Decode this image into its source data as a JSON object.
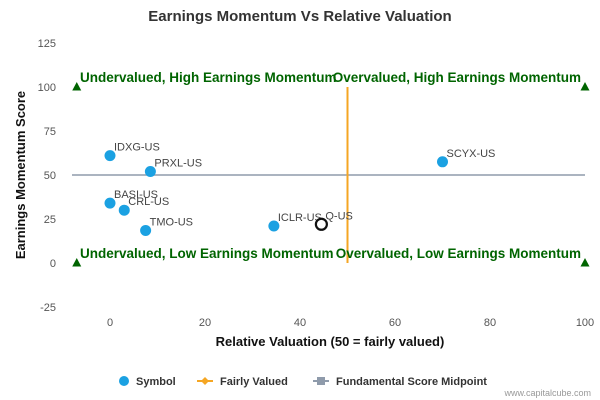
{
  "chart_data": {
    "type": "scatter",
    "title": "Earnings Momentum Vs Relative Valuation",
    "xlabel": "Relative Valuation (50 = fairly valued)",
    "ylabel": "Earnings Momentum Score",
    "xlim": [
      -8,
      100
    ],
    "ylim": [
      -25,
      125
    ],
    "xticks": [
      0,
      20,
      40,
      60,
      80,
      100
    ],
    "yticks": [
      125,
      100,
      75,
      50,
      25,
      0,
      -25
    ],
    "grid": false,
    "legend_position": "bottom",
    "colors": {
      "symbol": "#1ba1e2",
      "fairly_valued": "#f5a623",
      "midpoint": "#8f9bab",
      "quadrant_text": "#006400",
      "marker": "#006400"
    },
    "points": [
      {
        "label": "IDXG-US",
        "x": 0,
        "y": 61
      },
      {
        "label": "PRXL-US",
        "x": 8.5,
        "y": 52
      },
      {
        "label": "BASI-US",
        "x": 0,
        "y": 34
      },
      {
        "label": "CRL-US",
        "x": 3,
        "y": 30
      },
      {
        "label": "TMO-US",
        "x": 7.5,
        "y": 18.5
      },
      {
        "label": "ICLR-US",
        "x": 34.5,
        "y": 21
      },
      {
        "label": "SCYX-US",
        "x": 70,
        "y": 57.5
      }
    ],
    "highlight": {
      "label": "Q-US",
      "x": 44.5,
      "y": 22
    },
    "fairly_valued_line": {
      "x": 50,
      "y_from": 0,
      "y_to": 100
    },
    "midpoint_line": {
      "y": 50
    },
    "quadrant_labels": [
      {
        "text": "Undervalued, High Earnings Momentum",
        "x": 0,
        "y": 100
      },
      {
        "text": "Overvalued, High Earnings Momentum",
        "x": 100,
        "y": 100
      },
      {
        "text": "Undervalued, Low Earnings Momentum",
        "x": 0,
        "y": 0
      },
      {
        "text": "Overvalued, Low Earnings Momentum",
        "x": 100,
        "y": 0
      }
    ],
    "corner_markers": [
      {
        "x": -7,
        "y": 100
      },
      {
        "x": 100,
        "y": 100
      },
      {
        "x": -7,
        "y": 0
      },
      {
        "x": 100,
        "y": 0
      }
    ],
    "legend": [
      "Symbol",
      "Fairly Valued",
      "Fundamental Score Midpoint"
    ]
  },
  "footer": {
    "credit": "www.capitalcube.com"
  }
}
